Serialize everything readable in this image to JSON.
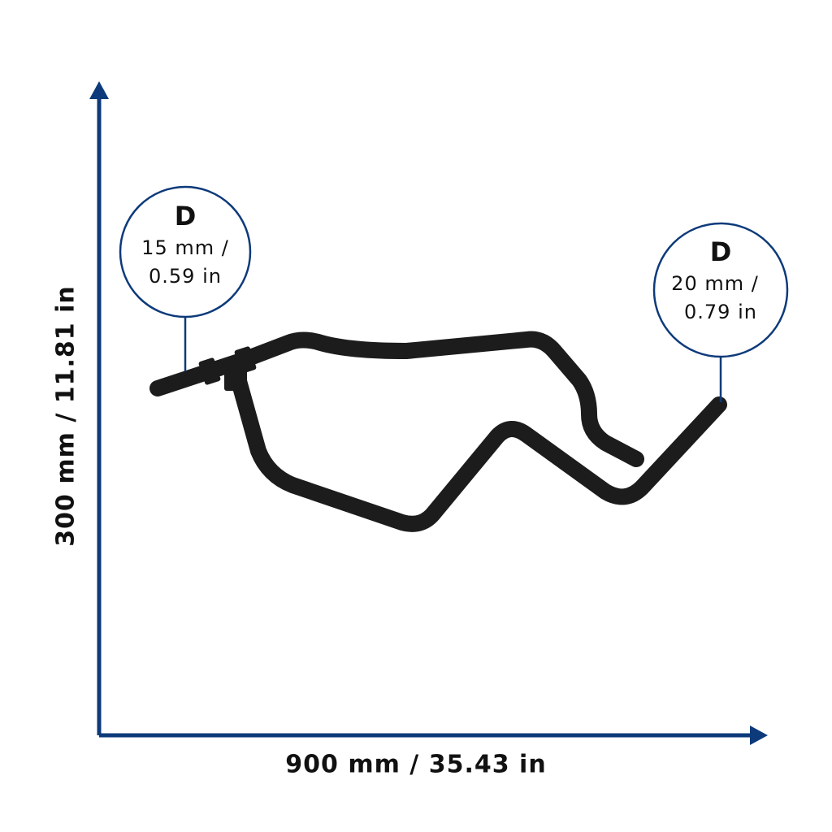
{
  "dimensions": {
    "width": "900 mm / 35.43 in",
    "height": "300 mm / 11.81 in"
  },
  "callouts": [
    {
      "label": "D",
      "line1": "15 mm /",
      "line2": "0.59 in"
    },
    {
      "label": "D",
      "line1": "20 mm /",
      "line2": "0.79 in"
    }
  ]
}
